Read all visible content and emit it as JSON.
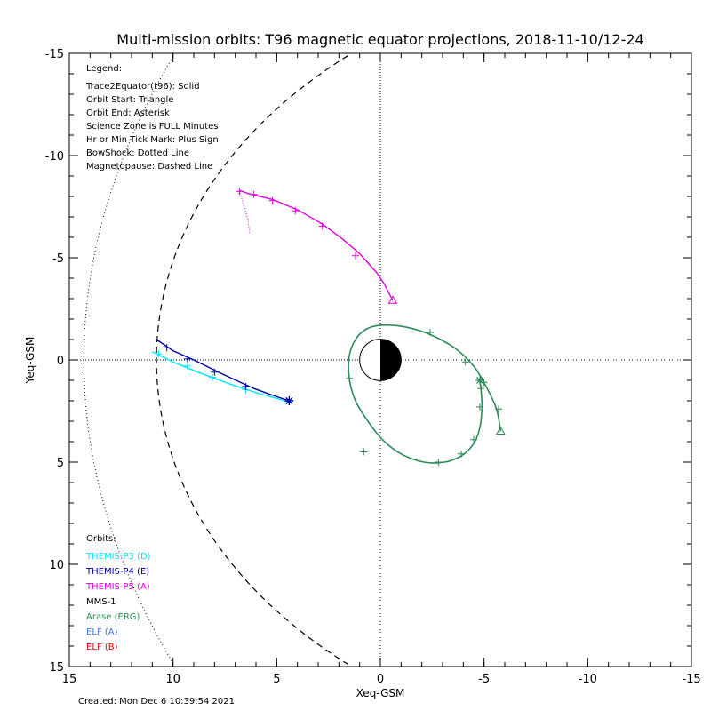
{
  "chart_data": {
    "type": "line",
    "title": "Multi-mission orbits: T96 magnetic equator projections, 2018-11-10/12-24",
    "xlabel": "Xeq-GSM",
    "ylabel": "Yeq-GSM",
    "xlim": [
      15,
      -15
    ],
    "ylim": [
      -15,
      15
    ],
    "x_ticks": [
      15,
      10,
      5,
      0,
      -5,
      -10,
      -15
    ],
    "y_ticks": [
      -15,
      -10,
      -5,
      0,
      5,
      10,
      15
    ],
    "grid": false,
    "legend_title": "Legend:",
    "legend_lines": [
      "Trace2Equator(t96): Solid",
      "Orbit Start: Triangle",
      "Orbit End: Asterisk",
      "Science Zone is FULL Minutes",
      "Hr or Min Tick Mark: Plus Sign",
      "BowShock: Dotted Line",
      "Magnetopause: Dashed Line"
    ],
    "orbits_title": "Orbits:",
    "orbits": [
      {
        "label": "THEMIS-P3 (D)",
        "color": "#00e5ff"
      },
      {
        "label": "THEMIS-P4 (E)",
        "color": "#0000a0"
      },
      {
        "label": "THEMIS-P5 (A)",
        "color": "#e000e0"
      },
      {
        "label": "MMS-1",
        "color": "#000000"
      },
      {
        "label": "Arase (ERG)",
        "color": "#2e8b57"
      },
      {
        "label": "ELF (A)",
        "color": "#3c78d8"
      },
      {
        "label": "ELF (B)",
        "color": "#e00000"
      }
    ],
    "footer": "Created: Mon Dec  6 10:39:54 2021",
    "boundaries": {
      "magnetopause_line": "dashed",
      "bowshock_line": "dotted"
    },
    "series": [
      {
        "label": "THEMIS-P3 (D)",
        "color": "#00e5ff",
        "points": [
          [
            11.0,
            -0.4
          ],
          [
            10.0,
            0.1
          ],
          [
            8.8,
            0.6
          ],
          [
            7.2,
            1.2
          ],
          [
            6.0,
            1.6
          ],
          [
            4.6,
            2.0
          ],
          [
            4.3,
            2.1
          ]
        ],
        "ticks": [
          [
            10.7,
            -0.3
          ],
          [
            9.3,
            0.3
          ],
          [
            8.1,
            0.85
          ],
          [
            6.5,
            1.45
          ],
          [
            4.4,
            2.05
          ]
        ],
        "start": null,
        "end": [
          4.4,
          2.0
        ]
      },
      {
        "label": "THEMIS-P4 (E)",
        "color": "#0000a0",
        "points": [
          [
            10.8,
            -1.0
          ],
          [
            10.0,
            -0.45
          ],
          [
            9.0,
            0.0
          ],
          [
            7.6,
            0.7
          ],
          [
            6.1,
            1.4
          ],
          [
            5.0,
            1.8
          ],
          [
            4.4,
            2.0
          ]
        ],
        "ticks": [
          [
            10.3,
            -0.6
          ],
          [
            9.3,
            -0.05
          ],
          [
            8.0,
            0.6
          ],
          [
            6.5,
            1.3
          ]
        ],
        "start": null,
        "end": [
          4.4,
          2.0
        ]
      },
      {
        "label": "THEMIS-P5 (A)",
        "color": "#e000e0",
        "points": [
          [
            6.8,
            -8.3
          ],
          [
            6.4,
            -8.15
          ],
          [
            5.2,
            -7.85
          ],
          [
            4.0,
            -7.35
          ],
          [
            2.8,
            -6.65
          ],
          [
            1.8,
            -5.9
          ],
          [
            1.0,
            -5.2
          ],
          [
            0.2,
            -4.3
          ],
          [
            -0.2,
            -3.7
          ],
          [
            -0.6,
            -2.9
          ]
        ],
        "ticks": [
          [
            6.8,
            -8.25
          ],
          [
            6.1,
            -8.1
          ],
          [
            5.2,
            -7.8
          ],
          [
            4.1,
            -7.3
          ],
          [
            2.8,
            -6.55
          ],
          [
            1.2,
            -5.1
          ]
        ],
        "start": [
          -0.6,
          -2.9
        ],
        "end": null
      },
      {
        "label": "Arase (ERG)",
        "color": "#2e8b57",
        "points": [
          [
            -5.8,
            3.5
          ],
          [
            -5.6,
            2.4
          ],
          [
            -5.1,
            1.3
          ],
          [
            -4.5,
            0.3
          ],
          [
            -3.7,
            -0.5
          ],
          [
            -2.9,
            -1.0
          ],
          [
            -2.0,
            -1.4
          ],
          [
            -1.0,
            -1.65
          ],
          [
            0.0,
            -1.7
          ],
          [
            0.7,
            -1.5
          ],
          [
            1.2,
            -1.0
          ],
          [
            1.5,
            -0.2
          ],
          [
            1.5,
            0.9
          ],
          [
            1.2,
            2.0
          ],
          [
            0.6,
            3.0
          ],
          [
            -0.1,
            3.9
          ],
          [
            -1.0,
            4.6
          ],
          [
            -2.1,
            5.0
          ],
          [
            -3.1,
            5.0
          ],
          [
            -3.9,
            4.7
          ],
          [
            -4.5,
            4.1
          ],
          [
            -4.8,
            3.3
          ],
          [
            -4.9,
            2.3
          ],
          [
            -4.85,
            1.4
          ],
          [
            -4.8,
            1.0
          ]
        ],
        "ticks": [
          [
            -5.7,
            2.4
          ],
          [
            -5.0,
            1.1
          ],
          [
            -4.1,
            0.1
          ],
          [
            -2.4,
            -1.35
          ],
          [
            1.5,
            0.9
          ],
          [
            0.8,
            4.5
          ],
          [
            -2.8,
            5.0
          ],
          [
            -3.9,
            4.6
          ],
          [
            -4.5,
            3.9
          ],
          [
            -4.8,
            2.3
          ],
          [
            -4.85,
            1.4
          ]
        ],
        "start": [
          -5.8,
          3.5
        ],
        "end": [
          -4.8,
          1.0
        ]
      }
    ]
  }
}
